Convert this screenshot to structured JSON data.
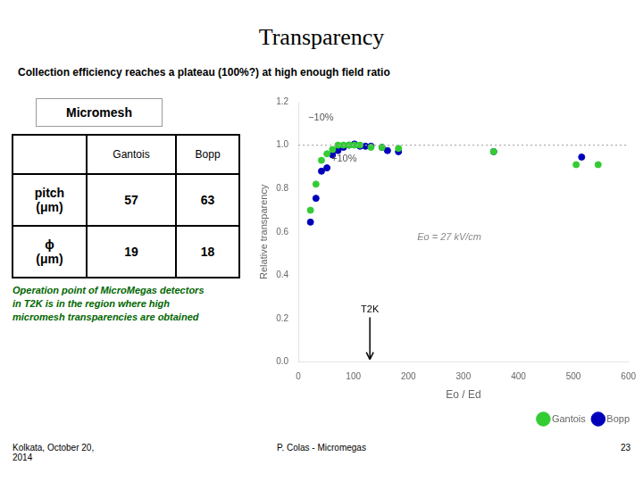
{
  "chart_data": {
    "type": "scatter",
    "title": "Transparency",
    "subtitle": "Collection efficiency reaches a plateau (100%?) at high enough field ratio",
    "x_label": "Eo / Ed",
    "y_label": "Relative transparency",
    "series": [
      {
        "name": "Gantois",
        "color": "#33cc33",
        "x": [
          22,
          32,
          42,
          52,
          62,
          72,
          82,
          92,
          102,
          112,
          132,
          152,
          182,
          355,
          505,
          545
        ],
        "values": [
          0.7,
          0.82,
          0.93,
          0.96,
          0.98,
          1.0,
          1.0,
          1.0,
          1.0,
          1.0,
          0.99,
          0.99,
          0.985,
          0.97,
          0.91,
          0.91
        ]
      },
      {
        "name": "Bopp",
        "color": "#0000bb",
        "x": [
          22,
          32,
          42,
          52,
          62,
          72,
          82,
          92,
          102,
          112,
          122,
          132,
          152,
          162,
          182,
          355,
          515
        ],
        "values": [
          0.645,
          0.755,
          0.88,
          0.895,
          0.955,
          0.975,
          0.99,
          1.0,
          1.005,
          0.995,
          0.995,
          0.995,
          0.99,
          0.975,
          0.97,
          0.97,
          0.945
        ]
      }
    ],
    "xlim": [
      0,
      600
    ],
    "ylim": [
      0,
      1.2
    ],
    "xticks": [
      0,
      100,
      200,
      300,
      400,
      500,
      600
    ],
    "yticks": [
      {
        "value": 0,
        "label": "0.0"
      },
      0.2,
      0.4,
      0.6,
      0.8,
      {
        "value": 1.0,
        "label": "1.0"
      },
      1.2
    ],
    "grid": false,
    "legend": "lower right",
    "reference_line": 1.0,
    "annotations": [
      {
        "text": "T2K",
        "x": 130
      },
      {
        "text": "−10%"
      },
      {
        "text": "+10%"
      },
      {
        "text": "Eo = 27 kV/cm"
      }
    ],
    "micromesh_label": "Micromesh",
    "table": [
      [
        "",
        "Gantois",
        "Bopp"
      ],
      [
        "pitch\n(μm)",
        "57",
        "63"
      ],
      [
        "ϕ\n(μm)",
        "19",
        "18"
      ]
    ],
    "note": "Operation point of MicroMegas detectors\nin T2K is in the region where high\nmicromesh transparencies are obtained",
    "footer": [
      "Kolkata, October 20,\n2014",
      "P. Colas - Micromegas",
      "23"
    ]
  }
}
